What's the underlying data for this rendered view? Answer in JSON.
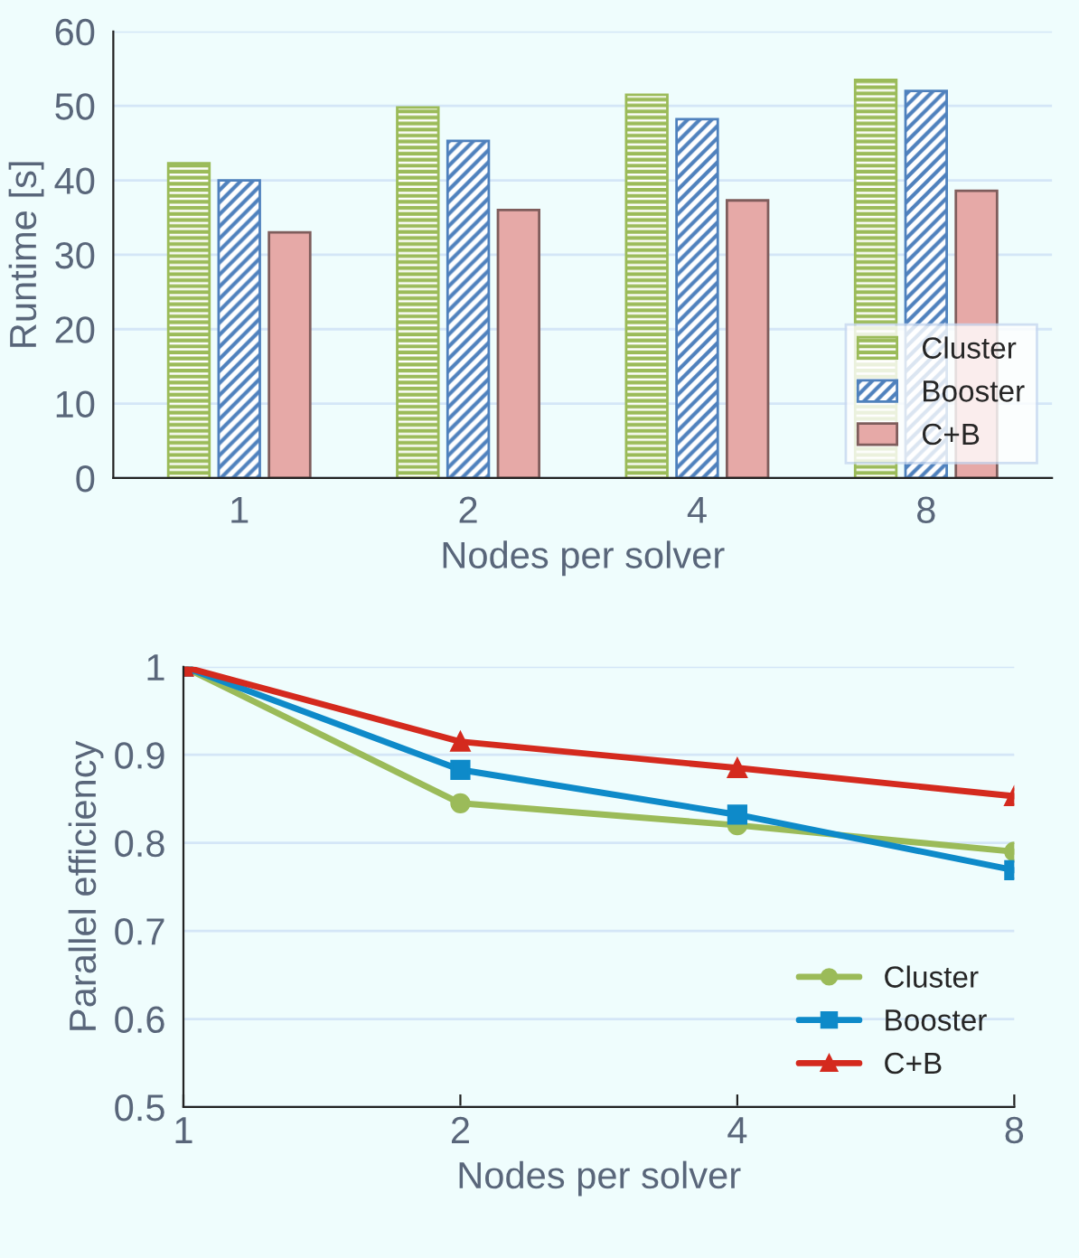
{
  "chart_data": [
    {
      "type": "bar",
      "categories": [
        "1",
        "2",
        "4",
        "8"
      ],
      "xlabel": "Nodes per solver",
      "ylabel": "Runtime [s]",
      "ylim": [
        0,
        60
      ],
      "yticks": [
        0,
        10,
        20,
        30,
        40,
        50,
        60
      ],
      "grid": "y",
      "legend": "bottom right",
      "series": [
        {
          "name": "Cluster",
          "color": "#9bbb59",
          "values": [
            42.3,
            49.8,
            51.5,
            53.5
          ]
        },
        {
          "name": "Booster",
          "color": "#4f81bd",
          "values": [
            40.0,
            45.3,
            48.2,
            52.0
          ]
        },
        {
          "name": "C+B",
          "color": "#e6a9a7",
          "values": [
            33.0,
            36.0,
            37.3,
            38.6
          ]
        }
      ]
    },
    {
      "type": "line",
      "categories": [
        "1",
        "2",
        "4",
        "8"
      ],
      "xlabel": "Nodes per solver",
      "ylabel": "Parallel efficiency",
      "ylim": [
        0.5,
        1.0
      ],
      "yticks": [
        0.5,
        0.6,
        0.7,
        0.8,
        0.9,
        1
      ],
      "grid": "y",
      "legend": "bottom right",
      "series": [
        {
          "name": "Cluster",
          "color": "#9bbb59",
          "marker": "circle",
          "values": [
            1.0,
            0.845,
            0.82,
            0.79
          ]
        },
        {
          "name": "Booster",
          "color": "#0e8ac9",
          "marker": "square",
          "values": [
            1.0,
            0.883,
            0.832,
            0.769
          ]
        },
        {
          "name": "C+B",
          "color": "#d42a1e",
          "marker": "triangle",
          "values": [
            1.0,
            0.915,
            0.885,
            0.853
          ]
        }
      ]
    }
  ]
}
